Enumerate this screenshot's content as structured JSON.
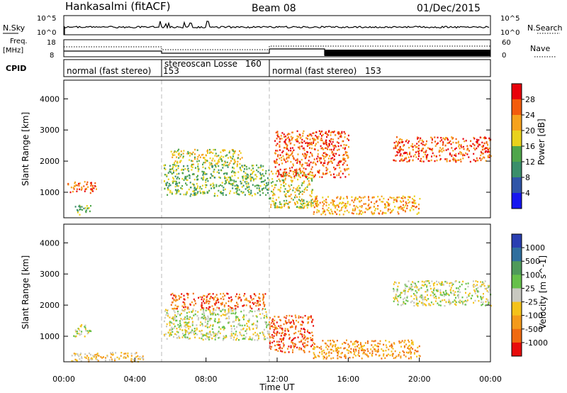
{
  "header": {
    "station": "Hankasalmi (fitACF)",
    "beam": "Beam 08",
    "date": "01/Dec/2015"
  },
  "status_panels": {
    "nsky": {
      "label": "N.Sky",
      "left_ticks": [
        "10^5",
        "10^0"
      ],
      "right_ticks": [
        "10^5",
        "10^0"
      ],
      "right_label": "N.Search"
    },
    "freq": {
      "label_top": "Freq.",
      "label_unit": "[MHz]",
      "left_ticks": [
        "18",
        "8"
      ],
      "right_ticks": [
        "60",
        "0"
      ],
      "right_label": "Nave"
    },
    "cpid": {
      "label": "CPID",
      "segments": [
        {
          "name": "normal (fast stereo)",
          "id": "153",
          "start_hour": 0.0,
          "end_hour": 5.5
        },
        {
          "name": "stereoscan Losse",
          "id": "160",
          "start_hour": 5.5,
          "end_hour": 11.5
        },
        {
          "name": "normal (fast stereo)",
          "id": "153",
          "start_hour": 11.5,
          "end_hour": 24.0
        }
      ]
    }
  },
  "chart_data": [
    {
      "type": "heatmap",
      "panel": "power",
      "ylabel": "Slant Range [km]",
      "xlim_hours": [
        0,
        24
      ],
      "ylim": [
        180,
        4600
      ],
      "yticks": [
        1000,
        2000,
        3000,
        4000
      ],
      "colorbar": {
        "label": "Power [dB]",
        "ticks": [
          "28",
          "24",
          "20",
          "16",
          "12",
          "8",
          "4"
        ],
        "colors": [
          "#e8000b",
          "#f35c0c",
          "#f6a21c",
          "#e9d21c",
          "#4fa64b",
          "#3a8f6b",
          "#2f55a8",
          "#1616f0"
        ]
      },
      "regions": [
        {
          "x": [
            0.2,
            1.8
          ],
          "y": [
            1000,
            1400
          ],
          "level": 1
        },
        {
          "x": [
            0.5,
            1.5
          ],
          "y": [
            300,
            600
          ],
          "level": 4
        },
        {
          "x": [
            5.6,
            11.5
          ],
          "y": [
            900,
            1900
          ],
          "level": 4
        },
        {
          "x": [
            6.0,
            10.0
          ],
          "y": [
            1900,
            2400
          ],
          "level": 3
        },
        {
          "x": [
            11.5,
            14.0
          ],
          "y": [
            500,
            1700
          ],
          "level": 3
        },
        {
          "x": [
            11.8,
            16.0
          ],
          "y": [
            1500,
            3000
          ],
          "level": 1
        },
        {
          "x": [
            14.0,
            20.0
          ],
          "y": [
            300,
            900
          ],
          "level": 2
        },
        {
          "x": [
            18.5,
            24.0
          ],
          "y": [
            2000,
            2800
          ],
          "level": 1
        }
      ]
    },
    {
      "type": "heatmap",
      "panel": "velocity",
      "ylabel": "Slant Range [km]",
      "xlabel": "Time UT",
      "xlim_hours": [
        0,
        24
      ],
      "xticks": [
        "00:00",
        "04:00",
        "08:00",
        "12:00",
        "16:00",
        "20:00",
        "00:00"
      ],
      "ylim": [
        180,
        4600
      ],
      "yticks": [
        1000,
        2000,
        3000,
        4000
      ],
      "colorbar": {
        "label": "Velocity [m s^-1]",
        "ticks": [
          "1000",
          "500",
          "100",
          "25",
          "-25",
          "-100",
          "-500",
          "-1000"
        ],
        "colors": [
          "#2a3fb2",
          "#2f6f9e",
          "#4f9a5a",
          "#66c04a",
          "#c8c8c0",
          "#f4c21a",
          "#f49a1a",
          "#f06a10",
          "#e80c0c"
        ]
      },
      "regions": [
        {
          "x": [
            0.5,
            1.5
          ],
          "y": [
            1000,
            1400
          ],
          "level": 4
        },
        {
          "x": [
            0.3,
            4.5
          ],
          "y": [
            200,
            500
          ],
          "level": 5
        },
        {
          "x": [
            5.6,
            11.5
          ],
          "y": [
            900,
            1900
          ],
          "level": 4
        },
        {
          "x": [
            6.0,
            11.3
          ],
          "y": [
            1900,
            2400
          ],
          "level": 7
        },
        {
          "x": [
            11.5,
            14.0
          ],
          "y": [
            500,
            1700
          ],
          "level": 7
        },
        {
          "x": [
            14.0,
            20.0
          ],
          "y": [
            300,
            900
          ],
          "level": 6
        },
        {
          "x": [
            18.5,
            24.0
          ],
          "y": [
            2000,
            2800
          ],
          "level": 4
        }
      ]
    }
  ]
}
